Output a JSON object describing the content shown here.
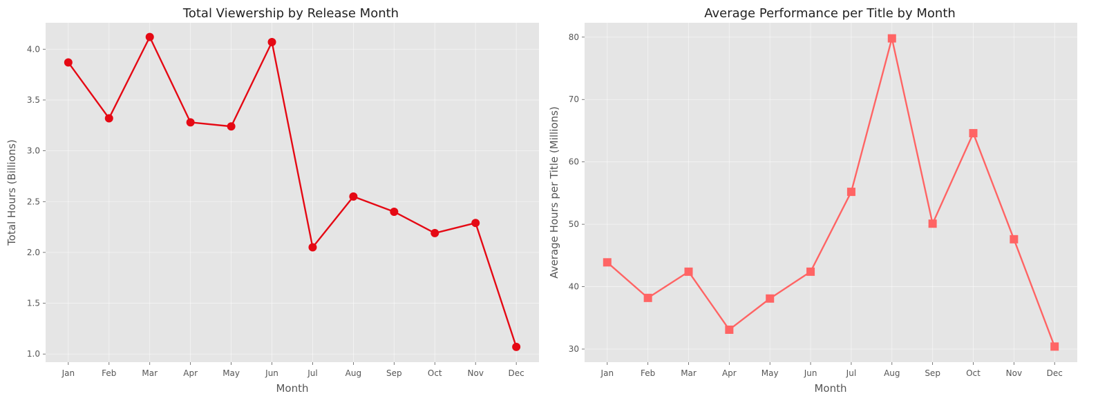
{
  "chart_data": [
    {
      "type": "line",
      "title": "Total Viewership by Release Month",
      "xlabel": "Month",
      "ylabel": "Total Hours (Billions)",
      "categories": [
        "Jan",
        "Feb",
        "Mar",
        "Apr",
        "May",
        "Jun",
        "Jul",
        "Aug",
        "Sep",
        "Oct",
        "Nov",
        "Dec"
      ],
      "series": [
        {
          "values": [
            3.87,
            3.32,
            4.12,
            3.28,
            3.24,
            4.07,
            2.05,
            2.55,
            2.4,
            2.19,
            2.29,
            1.07
          ],
          "color": "#e50914",
          "marker": "circle"
        }
      ],
      "ylim": [
        0.92,
        4.26
      ],
      "yticks": [
        1.0,
        1.5,
        2.0,
        2.5,
        3.0,
        3.5,
        4.0
      ],
      "ytick_labels": [
        "1.0",
        "1.5",
        "2.0",
        "2.5",
        "3.0",
        "3.5",
        "4.0"
      ],
      "grid": true
    },
    {
      "type": "line",
      "title": "Average Performance per Title by Month",
      "xlabel": "Month",
      "ylabel": "Average Hours per Title (Millions)",
      "categories": [
        "Jan",
        "Feb",
        "Mar",
        "Apr",
        "May",
        "Jun",
        "Jul",
        "Aug",
        "Sep",
        "Oct",
        "Nov",
        "Dec"
      ],
      "series": [
        {
          "values": [
            43.9,
            38.2,
            42.4,
            33.1,
            38.1,
            42.4,
            55.2,
            79.8,
            50.1,
            64.6,
            47.6,
            30.4
          ],
          "color": "#ff6464",
          "marker": "square"
        }
      ],
      "ylim": [
        27.9,
        82.3
      ],
      "yticks": [
        30,
        40,
        50,
        60,
        70,
        80
      ],
      "ytick_labels": [
        "30",
        "40",
        "50",
        "60",
        "70",
        "80"
      ],
      "grid": true
    }
  ]
}
